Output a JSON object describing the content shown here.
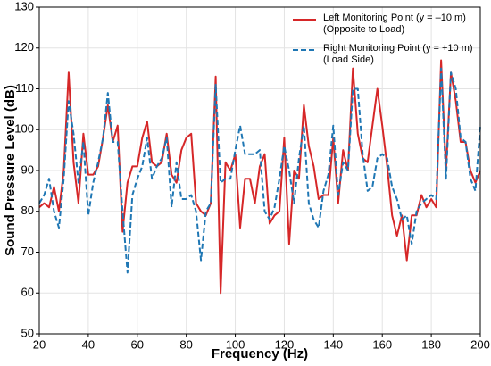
{
  "chart_data": {
    "type": "line",
    "xlabel": "Frequency (Hz)",
    "ylabel": "Sound Pressure Level (dB)",
    "x": [
      20,
      22,
      24,
      26,
      28,
      30,
      32,
      34,
      36,
      38,
      40,
      42,
      44,
      46,
      48,
      50,
      52,
      54,
      56,
      58,
      60,
      62,
      64,
      66,
      68,
      70,
      72,
      74,
      76,
      78,
      80,
      82,
      84,
      86,
      88,
      90,
      92,
      94,
      96,
      98,
      100,
      102,
      104,
      106,
      108,
      110,
      112,
      114,
      116,
      118,
      120,
      122,
      124,
      126,
      128,
      130,
      132,
      134,
      136,
      138,
      140,
      142,
      144,
      146,
      148,
      150,
      152,
      154,
      156,
      158,
      160,
      162,
      164,
      166,
      168,
      170,
      172,
      174,
      176,
      178,
      180,
      182,
      184,
      186,
      188,
      190,
      192,
      194,
      196,
      198,
      200
    ],
    "series": [
      {
        "name": "Left Monitoring Point (y = –10 m)\n(Opposite to Load)",
        "color": "#d62728",
        "dash": false,
        "values": [
          81,
          82,
          81,
          86,
          80,
          90,
          114,
          92,
          82,
          99,
          89,
          89,
          91,
          98,
          106,
          97,
          101,
          75,
          87,
          91,
          91,
          98,
          102,
          92,
          91,
          92,
          99,
          89,
          87,
          95,
          98,
          99,
          82,
          80,
          79,
          82,
          113,
          60,
          92,
          90,
          94,
          76,
          88,
          88,
          82,
          91,
          94,
          77,
          79,
          80,
          98,
          72,
          90,
          88,
          106,
          96,
          91,
          83,
          84,
          84,
          98,
          82,
          95,
          90,
          115,
          99,
          93,
          92,
          101,
          110,
          101,
          91,
          79,
          74,
          79,
          68,
          79,
          79,
          84,
          81,
          83,
          81,
          117,
          90,
          114,
          107,
          97,
          97,
          90,
          87,
          90
        ]
      },
      {
        "name": "Right Monitoring Point (y = +10 m)\n(Load Side)",
        "color": "#1f77b4",
        "dash": true,
        "values": [
          82,
          84,
          88,
          80,
          76,
          88,
          107,
          99,
          87,
          97,
          79,
          87,
          92,
          98,
          109,
          97,
          97,
          80,
          65,
          84,
          88,
          91,
          98,
          88,
          91,
          93,
          98,
          81,
          92,
          83,
          83,
          84,
          80,
          68,
          80,
          82,
          111,
          87,
          88,
          88,
          95,
          101,
          94,
          94,
          94,
          95,
          80,
          78,
          81,
          88,
          96,
          90,
          82,
          93,
          101,
          82,
          78,
          76,
          85,
          89,
          101,
          84,
          92,
          90,
          110,
          110,
          94,
          85,
          86,
          93,
          94,
          93,
          86,
          83,
          78,
          79,
          72,
          80,
          82,
          83,
          84,
          83,
          115,
          88,
          114,
          110,
          98,
          97,
          88,
          85,
          101
        ]
      }
    ],
    "xlim": [
      20,
      200
    ],
    "xticks": [
      20,
      40,
      60,
      80,
      100,
      120,
      140,
      160,
      180,
      200
    ],
    "ylim": [
      50,
      130
    ],
    "yticks": [
      50,
      60,
      70,
      80,
      90,
      100,
      110,
      120,
      130
    ],
    "grid": true,
    "legend": "upper right"
  }
}
